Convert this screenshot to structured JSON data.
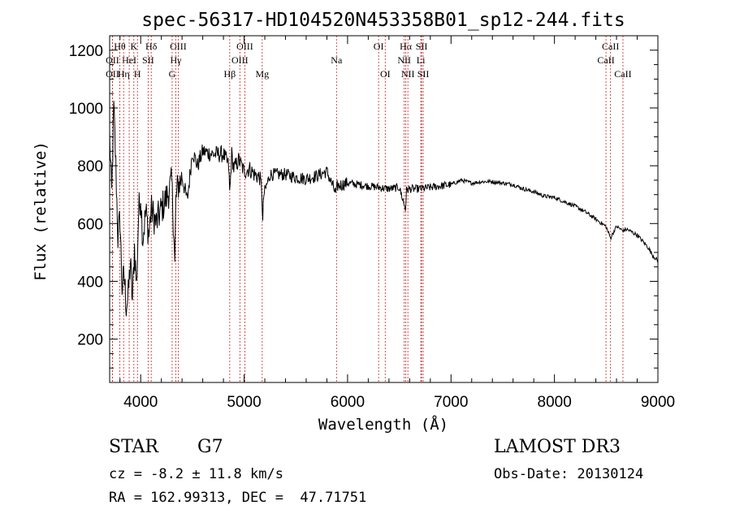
{
  "chart_data": {
    "type": "line",
    "title": "spec-56317-HD104520N453358B01_sp12-244.fits",
    "xlabel": "Wavelength (Å)",
    "ylabel": "Flux (relative)",
    "xlim": [
      3700,
      9000
    ],
    "ylim": [
      50,
      1250
    ],
    "xticks": [
      4000,
      5000,
      6000,
      7000,
      8000,
      9000
    ],
    "yticks": [
      200,
      400,
      600,
      800,
      1000,
      1200
    ],
    "series": [
      {
        "name": "flux",
        "anchors": [
          [
            3700,
            900
          ],
          [
            3720,
            700
          ],
          [
            3740,
            1000
          ],
          [
            3760,
            800
          ],
          [
            3780,
            550
          ],
          [
            3800,
            620
          ],
          [
            3820,
            380
          ],
          [
            3840,
            420
          ],
          [
            3860,
            320
          ],
          [
            3880,
            350
          ],
          [
            3900,
            470
          ],
          [
            3920,
            330
          ],
          [
            3940,
            520
          ],
          [
            3960,
            380
          ],
          [
            3980,
            640
          ],
          [
            4000,
            700
          ],
          [
            4020,
            550
          ],
          [
            4050,
            640
          ],
          [
            4080,
            560
          ],
          [
            4100,
            650
          ],
          [
            4150,
            600
          ],
          [
            4200,
            650
          ],
          [
            4250,
            690
          ],
          [
            4300,
            740
          ],
          [
            4320,
            580
          ],
          [
            4330,
            450
          ],
          [
            4340,
            680
          ],
          [
            4360,
            730
          ],
          [
            4400,
            760
          ],
          [
            4450,
            680
          ],
          [
            4500,
            850
          ],
          [
            4550,
            800
          ],
          [
            4600,
            850
          ],
          [
            4700,
            840
          ],
          [
            4800,
            840
          ],
          [
            4850,
            800
          ],
          [
            4861,
            700
          ],
          [
            4880,
            840
          ],
          [
            4900,
            790
          ],
          [
            4950,
            820
          ],
          [
            5000,
            780
          ],
          [
            5050,
            790
          ],
          [
            5100,
            770
          ],
          [
            5150,
            760
          ],
          [
            5170,
            720
          ],
          [
            5180,
            600
          ],
          [
            5190,
            700
          ],
          [
            5250,
            770
          ],
          [
            5300,
            770
          ],
          [
            5400,
            770
          ],
          [
            5500,
            760
          ],
          [
            5600,
            755
          ],
          [
            5700,
            765
          ],
          [
            5800,
            780
          ],
          [
            5890,
            700
          ],
          [
            5900,
            730
          ],
          [
            6000,
            740
          ],
          [
            6100,
            735
          ],
          [
            6200,
            730
          ],
          [
            6300,
            725
          ],
          [
            6400,
            720
          ],
          [
            6500,
            725
          ],
          [
            6560,
            650
          ],
          [
            6570,
            715
          ],
          [
            6600,
            720
          ],
          [
            6700,
            720
          ],
          [
            6800,
            725
          ],
          [
            6900,
            730
          ],
          [
            7000,
            735
          ],
          [
            7100,
            750
          ],
          [
            7200,
            740
          ],
          [
            7300,
            745
          ],
          [
            7400,
            745
          ],
          [
            7500,
            740
          ],
          [
            7600,
            735
          ],
          [
            7700,
            720
          ],
          [
            7800,
            710
          ],
          [
            7900,
            695
          ],
          [
            8000,
            690
          ],
          [
            8100,
            675
          ],
          [
            8200,
            660
          ],
          [
            8300,
            640
          ],
          [
            8400,
            615
          ],
          [
            8498,
            590
          ],
          [
            8542,
            550
          ],
          [
            8600,
            590
          ],
          [
            8662,
            575
          ],
          [
            8700,
            580
          ],
          [
            8800,
            560
          ],
          [
            8900,
            520
          ],
          [
            8950,
            490
          ],
          [
            9000,
            470
          ]
        ]
      }
    ],
    "spectral_lines": [
      {
        "label": "Hθ",
        "x": 3798,
        "row": 0
      },
      {
        "label": "OII",
        "x": 3727,
        "row": 1
      },
      {
        "label": "OII",
        "x": 3727,
        "row": 2
      },
      {
        "label": "K",
        "x": 3934,
        "row": 0
      },
      {
        "label": "HeI",
        "x": 3889,
        "row": 1
      },
      {
        "label": "Hη",
        "x": 3835,
        "row": 2
      },
      {
        "label": "Hδ",
        "x": 4102,
        "row": 0
      },
      {
        "label": "SII",
        "x": 4072,
        "row": 1
      },
      {
        "label": "H",
        "x": 3969,
        "row": 2
      },
      {
        "label": "OIII",
        "x": 4363,
        "row": 0
      },
      {
        "label": "Hγ",
        "x": 4340,
        "row": 1
      },
      {
        "label": "G",
        "x": 4304,
        "row": 2
      },
      {
        "label": "OIII",
        "x": 5007,
        "row": 0
      },
      {
        "label": "OIII",
        "x": 4959,
        "row": 1
      },
      {
        "label": "Hβ",
        "x": 4861,
        "row": 2
      },
      {
        "label": "Mg",
        "x": 5175,
        "row": 2
      },
      {
        "label": "Na",
        "x": 5893,
        "row": 1
      },
      {
        "label": "OI",
        "x": 6300,
        "row": 0
      },
      {
        "label": "OI",
        "x": 6364,
        "row": 2
      },
      {
        "label": "Hα",
        "x": 6563,
        "row": 0
      },
      {
        "label": "SII",
        "x": 6716,
        "row": 0
      },
      {
        "label": "NII",
        "x": 6548,
        "row": 1
      },
      {
        "label": "Li",
        "x": 6708,
        "row": 1
      },
      {
        "label": "NII",
        "x": 6583,
        "row": 2
      },
      {
        "label": "SII",
        "x": 6731,
        "row": 2
      },
      {
        "label": "CaII",
        "x": 8542,
        "row": 0
      },
      {
        "label": "CaII",
        "x": 8498,
        "row": 1
      },
      {
        "label": "CaII",
        "x": 8662,
        "row": 2
      }
    ]
  },
  "info": {
    "object_class": "STAR",
    "subclass": "G7",
    "survey": "LAMOST DR3",
    "redshift": "cz = -8.2 ± 11.8 km/s",
    "obs_date": "Obs-Date: 20130124",
    "coords": "RA = 162.99313, DEC =  47.71751"
  },
  "colors": {
    "spectrum": "#000000",
    "line_markers": "#cc2222",
    "axes": "#000000"
  }
}
